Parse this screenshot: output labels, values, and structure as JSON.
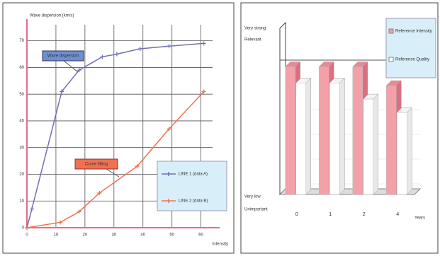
{
  "chart_data": [
    {
      "type": "line",
      "title": "Wave dispersion (km/s)",
      "x_label": "Intensity",
      "xlim": [
        0,
        64
      ],
      "xticks": [
        0,
        10,
        20,
        30,
        40,
        50,
        60
      ],
      "ylim": [
        0,
        76
      ],
      "yticks": [
        0,
        10,
        20,
        30,
        40,
        50,
        60,
        70
      ],
      "grid": true,
      "annotations": [
        "Wave dispersion",
        "Curve fitting"
      ],
      "series": [
        {
          "name": "LINE 1 (data A)",
          "color": "#6f6fb8",
          "x": [
            0,
            1.7,
            12,
            18,
            26,
            31,
            39,
            49,
            61
          ],
          "values": [
            0,
            7,
            51,
            59,
            64,
            65,
            67,
            68,
            69
          ]
        },
        {
          "name": "LINE 2 (data B)",
          "color": "#f07050",
          "x": [
            0,
            11.5,
            18,
            25,
            38,
            49,
            61
          ],
          "values": [
            0,
            2,
            6,
            13,
            23,
            37,
            51
          ]
        }
      ]
    },
    {
      "type": "bar3d",
      "y_top_label": [
        "Very strong",
        "Relevant"
      ],
      "y_bottom_label": [
        "Very low",
        "Unimportant"
      ],
      "x_label": "Years",
      "categories": [
        "0",
        "1",
        "2",
        "4"
      ],
      "ylim": [
        0,
        100
      ],
      "series": [
        {
          "name": "Reference Intensity",
          "color": "#f4a0a8",
          "values": [
            95,
            95,
            95,
            81
          ]
        },
        {
          "name": "Reference Quality",
          "color": "#ffffff",
          "values": [
            83,
            83,
            71,
            61
          ]
        }
      ]
    }
  ]
}
